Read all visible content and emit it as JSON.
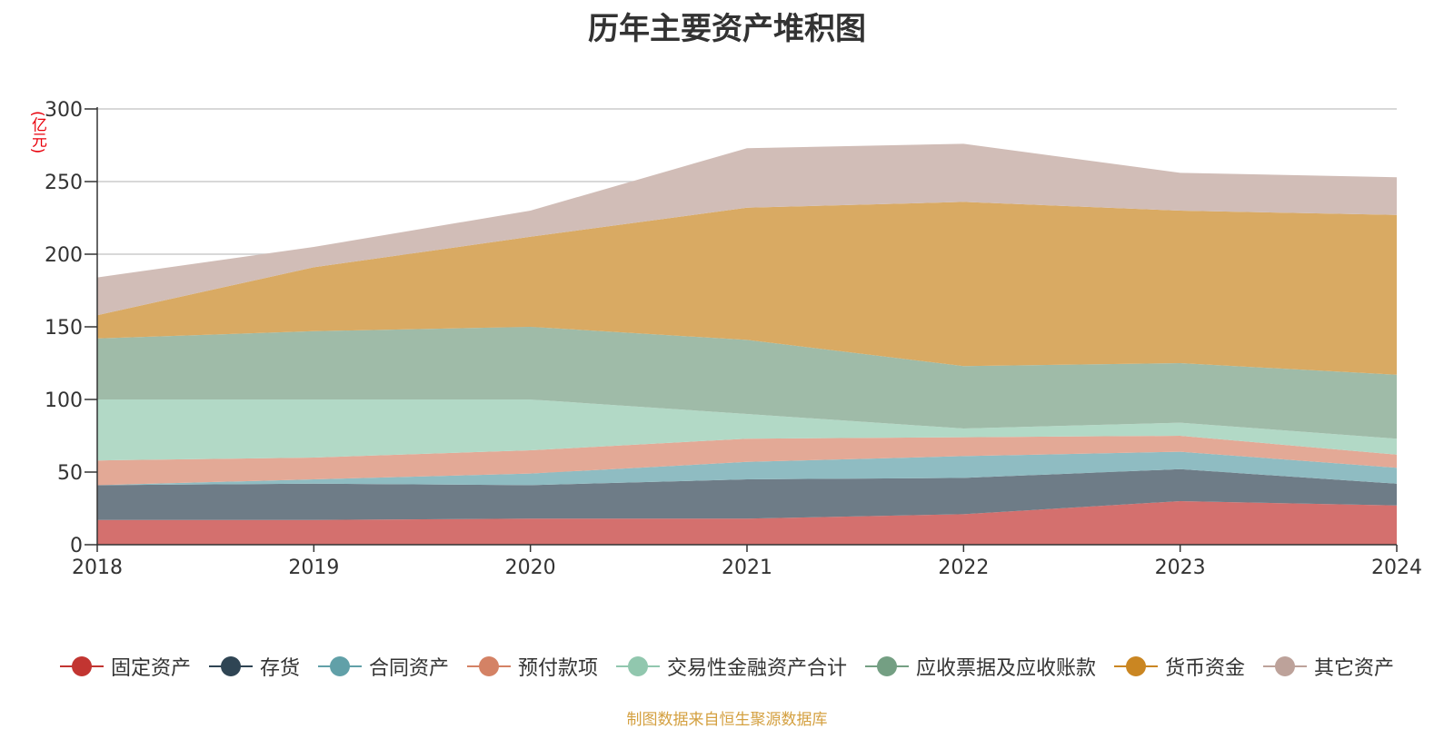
{
  "chart_data": {
    "type": "area",
    "stacked": true,
    "title": "历年主要资产堆积图",
    "ylabel": "(亿元)",
    "ylim": [
      0,
      300
    ],
    "yticks": [
      0,
      50,
      100,
      150,
      200,
      250,
      300
    ],
    "grid": true,
    "legend_position": "bottom",
    "categories": [
      "2018",
      "2019",
      "2020",
      "2021",
      "2022",
      "2023",
      "2024"
    ],
    "series": [
      {
        "name": "固定资产",
        "color": "#c23531",
        "fill": "#d4706e",
        "values": [
          17,
          17,
          18,
          18,
          21,
          30,
          27
        ]
      },
      {
        "name": "存货",
        "color": "#2f4554",
        "fill": "#6e7c87",
        "values": [
          24,
          25,
          23,
          27,
          25,
          22,
          15
        ]
      },
      {
        "name": "合同资产",
        "color": "#61a0a8",
        "fill": "#8fbcc2",
        "values": [
          0,
          3,
          8,
          12,
          15,
          12,
          11
        ]
      },
      {
        "name": "预付款项",
        "color": "#d48265",
        "fill": "#e3a996",
        "values": [
          17,
          15,
          16,
          16,
          13,
          11,
          9
        ]
      },
      {
        "name": "交易性金融资产合计",
        "color": "#91c7ae",
        "fill": "#b2d9c6",
        "values": [
          42,
          40,
          35,
          17,
          6,
          9,
          11
        ]
      },
      {
        "name": "应收票据及应收账款",
        "color": "#749f83",
        "fill": "#9fbba8",
        "values": [
          42,
          47,
          50,
          51,
          43,
          41,
          44
        ]
      },
      {
        "name": "货币资金",
        "color": "#ca8622",
        "fill": "#d9aa63",
        "values": [
          16,
          44,
          62,
          91,
          113,
          105,
          110
        ]
      },
      {
        "name": "其它资产",
        "color": "#bda29a",
        "fill": "#d1bdb7",
        "values": [
          26,
          14,
          18,
          41,
          40,
          26,
          26
        ]
      }
    ]
  },
  "source_note": "制图数据来自恒生聚源数据库"
}
